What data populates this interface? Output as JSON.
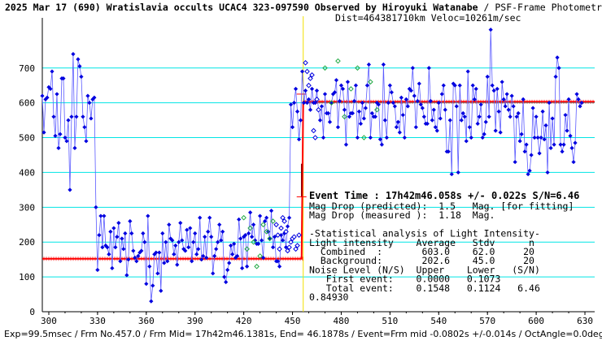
{
  "header": {
    "title_bold": "2025 Mar 17 (690) Wratislavia occults UCAC4 323-097590 Observed by Hiroyuki Watanabe",
    "title_rest": " / PSF-Frame Photometry /",
    "line2": "Dist=464381710km Veloc=10261m/sec"
  },
  "footer": "Exp=99.5msec / Frm No.457.0 / Frm Mid= 17h42m46.1381s, End= 46.1878s / Event=Frm mid -0.0802s +/-0.014s / OctAngle=0.0deg",
  "annotations": {
    "event_time": "Event Time : 17h42m46.058s  +/- 0.022s  S/N=6.46",
    "lines": [
      "Mag Drop (predicted):  1.5   Mag. [for fitting]",
      "Mag Drop (measured ):  1.18  Mag.",
      "",
      "-Statistical analysis of Light Intensity-",
      "Light intensity    Average   Stdv      n",
      "  Combined  :       603.0    62.0     20",
      "  Background:       202.6    45.0     20",
      "Noise Level (N/S)  Upper    Lower   (S/N)",
      "   First event:    0.0000   0.1073",
      "   Total event:    0.1548   0.1124   6.46",
      "0.84930"
    ]
  },
  "colors": {
    "background": "#ffffff",
    "grid": "#00e5e5",
    "blue_points": "#0000e0",
    "blue_line": "#5b5bff",
    "green_points": "#22aa44",
    "fit_line": "#ff0000",
    "event_line": "#f0e000"
  },
  "chart_data": {
    "type": "line",
    "x_ticks": [
      300,
      330,
      360,
      390,
      420,
      450,
      480,
      510,
      540,
      570,
      600,
      630
    ],
    "y_ticks": [
      0,
      100,
      200,
      300,
      400,
      500,
      600,
      700
    ],
    "xlim": [
      296,
      636
    ],
    "ylim": [
      0,
      830
    ],
    "grid": true,
    "event_x": 456.6,
    "fit_levels": {
      "before": 152,
      "after": 603
    },
    "series": [
      {
        "marker": "filled-diamond",
        "x_start": 296,
        "values": [
          620,
          515,
          610,
          615,
          645,
          640,
          690,
          560,
          505,
          625,
          470,
          510,
          670,
          670,
          500,
          490,
          550,
          350,
          560,
          740,
          470,
          560,
          725,
          705,
          675,
          560,
          530,
          490,
          620,
          600,
          555,
          610,
          615,
          300,
          120,
          220,
          275,
          185,
          275,
          190,
          185,
          165,
          230,
          125,
          240,
          185,
          215,
          255,
          145,
          210,
          180,
          225,
          105,
          150,
          260,
          225,
          175,
          155,
          145,
          160,
          170,
          175,
          225,
          200,
          80,
          275,
          130,
          30,
          75,
          165,
          170,
          110,
          170,
          60,
          225,
          140,
          200,
          145,
          250,
          210,
          205,
          165,
          190,
          135,
          200,
          255,
          205,
          180,
          175,
          235,
          185,
          240,
          145,
          200,
          225,
          165,
          180,
          270,
          150,
          160,
          215,
          155,
          230,
          270,
          215,
          110,
          160,
          180,
          200,
          250,
          205,
          230,
          100,
          85,
          120,
          140,
          190,
          165,
          195,
          155,
          160,
          265,
          210,
          125,
          215,
          220,
          130,
          225,
          285,
          215,
          250,
          205,
          195,
          195,
          275,
          205,
          155,
          260,
          270,
          230,
          210,
          290,
          185,
          215,
          145,
          145,
          130,
          220,
          205,
          225,
          185,
          245,
          270,
          595,
          530,
          600,
          640,
          575,
          495,
          550,
          690,
          600,
          635,
          600,
          610,
          580,
          640,
          600,
          600,
          635,
          580,
          550,
          590,
          500,
          625,
          570,
          570,
          545,
          600,
          625,
          630,
          665,
          530,
          605,
          650,
          640,
          580,
          480,
          660,
          560,
          570,
          570,
          605,
          650,
          500,
          575,
          540,
          600,
          555,
          585,
          650,
          710,
          500,
          570,
          560,
          560,
          600,
          595,
          495,
          480,
          710,
          550,
          500,
          600,
          650,
          630,
          600,
          590,
          530,
          545,
          515,
          615,
          565,
          500,
          610,
          590,
          640,
          635,
          700,
          620,
          530,
          605,
          655,
          595,
          585,
          560,
          540,
          540,
          700,
          605,
          550,
          580,
          530,
          520,
          600,
          555,
          625,
          650,
          580,
          460,
          460,
          550,
          395,
          655,
          650,
          590,
          400,
          650,
          550,
          570,
          560,
          490,
          690,
          530,
          500,
          650,
          610,
          640,
          540,
          560,
          595,
          500,
          510,
          545,
          675,
          560,
          810,
          650,
          635,
          520,
          640,
          575,
          515,
          660,
          610,
          590,
          625,
          580,
          560,
          620,
          590,
          430,
          560,
          570,
          490,
          510,
          610,
          460,
          480,
          395,
          405,
          450,
          585,
          500,
          560,
          500,
          455,
          500,
          575,
          495,
          535,
          400,
          600,
          470,
          555,
          480,
          675,
          730,
          700,
          480,
          460,
          480,
          565,
          520,
          610,
          505,
          470,
          430,
          485,
          625,
          610,
          590,
          600
        ]
      },
      {
        "marker": "open-diamond",
        "x": [
          440,
          441,
          442,
          443,
          444,
          445,
          446,
          447,
          448,
          449,
          450,
          451,
          452,
          453,
          454,
          458,
          459,
          460,
          461,
          462,
          463,
          464,
          465,
          466
        ],
        "values": [
          250,
          220,
          180,
          240,
          270,
          260,
          230,
          175,
          185,
          200,
          210,
          215,
          180,
          190,
          220,
          715,
          690,
          650,
          670,
          680,
          520,
          500,
          610,
          580
        ]
      },
      {
        "marker": "green-diamond",
        "x": [
          420,
          422,
          424,
          426,
          428,
          430,
          432,
          434,
          436,
          438,
          470,
          474,
          478,
          482,
          486,
          490,
          494,
          498,
          502
        ],
        "values": [
          270,
          180,
          240,
          200,
          130,
          160,
          250,
          230,
          210,
          260,
          700,
          600,
          720,
          560,
          640,
          700,
          500,
          660,
          580
        ]
      }
    ]
  }
}
